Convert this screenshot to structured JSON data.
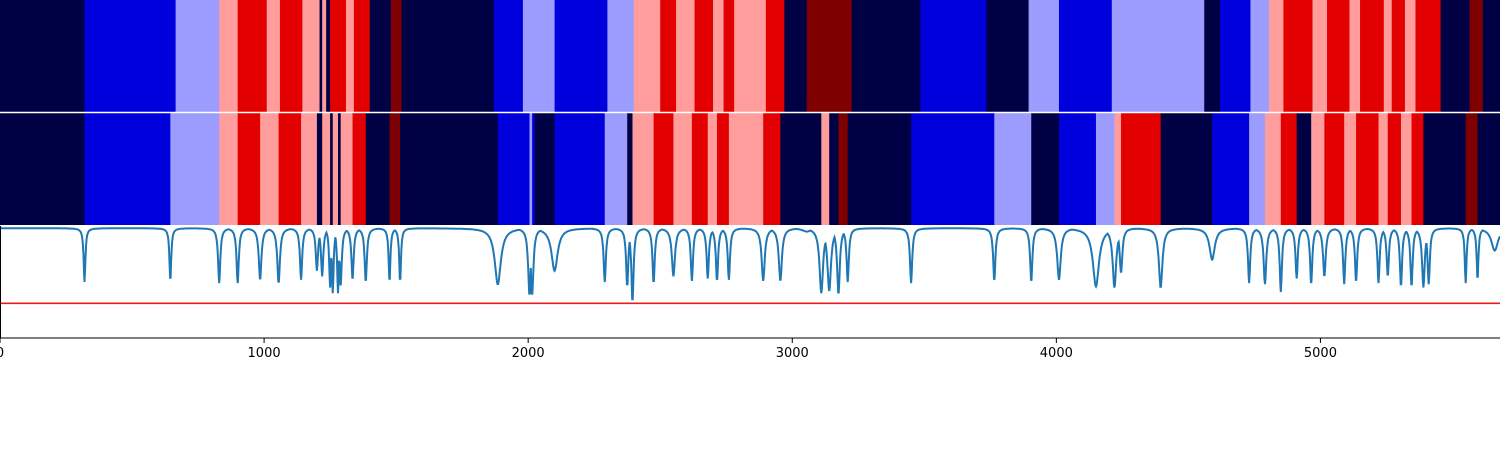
{
  "chart_data": {
    "type": "heatmap",
    "xlim": [
      0,
      5680
    ],
    "x_ticks": [
      0,
      1000,
      2000,
      3000,
      4000,
      5000
    ],
    "colors": {
      "0": "#000045",
      "1": "#0000dc",
      "2": "#9c9cff",
      "3": "#ff9c9c",
      "4": "#e30000",
      "5": "#7f0000",
      "divider": "#ffffff",
      "line": "#1f77b4",
      "threshold": "#e8191a"
    },
    "row1": [
      [
        0,
        0
      ],
      [
        320,
        1
      ],
      [
        665,
        2
      ],
      [
        830,
        3
      ],
      [
        900,
        4
      ],
      [
        1010,
        3
      ],
      [
        1060,
        4
      ],
      [
        1145,
        3
      ],
      [
        1210,
        0
      ],
      [
        1220,
        3
      ],
      [
        1235,
        0
      ],
      [
        1250,
        4
      ],
      [
        1310,
        3
      ],
      [
        1340,
        4
      ],
      [
        1400,
        0
      ],
      [
        1480,
        5
      ],
      [
        1520,
        0
      ],
      [
        1870,
        1
      ],
      [
        1980,
        2
      ],
      [
        2100,
        1
      ],
      [
        2300,
        2
      ],
      [
        2400,
        3
      ],
      [
        2500,
        4
      ],
      [
        2560,
        3
      ],
      [
        2630,
        4
      ],
      [
        2700,
        3
      ],
      [
        2740,
        4
      ],
      [
        2780,
        3
      ],
      [
        2900,
        4
      ],
      [
        2970,
        0
      ],
      [
        3055,
        5
      ],
      [
        3225,
        0
      ],
      [
        3485,
        1
      ],
      [
        3735,
        0
      ],
      [
        3895,
        2
      ],
      [
        4010,
        1
      ],
      [
        4210,
        2
      ],
      [
        4560,
        0
      ],
      [
        4620,
        1
      ],
      [
        4735,
        2
      ],
      [
        4805,
        3
      ],
      [
        4860,
        4
      ],
      [
        4970,
        3
      ],
      [
        5025,
        4
      ],
      [
        5110,
        3
      ],
      [
        5150,
        4
      ],
      [
        5240,
        3
      ],
      [
        5270,
        4
      ],
      [
        5320,
        3
      ],
      [
        5360,
        4
      ],
      [
        5455,
        0
      ],
      [
        5565,
        5
      ],
      [
        5615,
        0
      ]
    ],
    "row2": [
      [
        0,
        0
      ],
      [
        320,
        1
      ],
      [
        645,
        2
      ],
      [
        830,
        3
      ],
      [
        900,
        4
      ],
      [
        985,
        3
      ],
      [
        1055,
        4
      ],
      [
        1140,
        3
      ],
      [
        1200,
        0
      ],
      [
        1220,
        3
      ],
      [
        1250,
        0
      ],
      [
        1260,
        3
      ],
      [
        1280,
        0
      ],
      [
        1290,
        3
      ],
      [
        1335,
        4
      ],
      [
        1385,
        0
      ],
      [
        1475,
        5
      ],
      [
        1515,
        0
      ],
      [
        1885,
        1
      ],
      [
        2005,
        2
      ],
      [
        2015,
        1
      ],
      [
        2025,
        0
      ],
      [
        2100,
        1
      ],
      [
        2290,
        2
      ],
      [
        2375,
        0
      ],
      [
        2395,
        3
      ],
      [
        2475,
        4
      ],
      [
        2550,
        3
      ],
      [
        2620,
        4
      ],
      [
        2680,
        3
      ],
      [
        2715,
        4
      ],
      [
        2760,
        3
      ],
      [
        2890,
        4
      ],
      [
        2955,
        0
      ],
      [
        3110,
        3
      ],
      [
        3140,
        0
      ],
      [
        3175,
        5
      ],
      [
        3210,
        0
      ],
      [
        3450,
        1
      ],
      [
        3765,
        2
      ],
      [
        3905,
        0
      ],
      [
        4010,
        1
      ],
      [
        4150,
        2
      ],
      [
        4220,
        3
      ],
      [
        4245,
        4
      ],
      [
        4395,
        0
      ],
      [
        4590,
        1
      ],
      [
        4730,
        2
      ],
      [
        4790,
        3
      ],
      [
        4850,
        4
      ],
      [
        4910,
        0
      ],
      [
        4965,
        3
      ],
      [
        5015,
        4
      ],
      [
        5090,
        3
      ],
      [
        5135,
        4
      ],
      [
        5220,
        3
      ],
      [
        5255,
        4
      ],
      [
        5305,
        3
      ],
      [
        5345,
        4
      ],
      [
        5390,
        0
      ],
      [
        5550,
        5
      ],
      [
        5595,
        0
      ]
    ],
    "line": {
      "ylim": [
        0,
        1.0
      ],
      "baseline": 0.98,
      "threshold": 0.31,
      "dips": [
        [
          320,
          0.5,
          4
        ],
        [
          645,
          0.51,
          4
        ],
        [
          830,
          0.49,
          5
        ],
        [
          900,
          0.49,
          5
        ],
        [
          985,
          0.52,
          6
        ],
        [
          1055,
          0.49,
          6
        ],
        [
          1140,
          0.52,
          5
        ],
        [
          1200,
          0.6,
          5
        ],
        [
          1220,
          0.55,
          5
        ],
        [
          1250,
          0.45,
          4
        ],
        [
          1260,
          0.4,
          4
        ],
        [
          1280,
          0.4,
          4
        ],
        [
          1290,
          0.47,
          5
        ],
        [
          1335,
          0.52,
          5
        ],
        [
          1385,
          0.5,
          5
        ],
        [
          1475,
          0.5,
          4
        ],
        [
          1515,
          0.5,
          4
        ],
        [
          1885,
          0.48,
          14
        ],
        [
          2005,
          0.38,
          6
        ],
        [
          2015,
          0.38,
          6
        ],
        [
          2100,
          0.6,
          14
        ],
        [
          2290,
          0.5,
          5
        ],
        [
          2375,
          0.46,
          5
        ],
        [
          2395,
          0.32,
          5
        ],
        [
          2475,
          0.49,
          5
        ],
        [
          2550,
          0.55,
          7
        ],
        [
          2620,
          0.51,
          5
        ],
        [
          2680,
          0.53,
          5
        ],
        [
          2715,
          0.51,
          5
        ],
        [
          2760,
          0.52,
          5
        ],
        [
          2890,
          0.51,
          7
        ],
        [
          2955,
          0.51,
          7
        ],
        [
          3055,
          0.95,
          20
        ],
        [
          3110,
          0.4,
          8
        ],
        [
          3140,
          0.42,
          8
        ],
        [
          3175,
          0.39,
          6
        ],
        [
          3210,
          0.5,
          5
        ],
        [
          3450,
          0.49,
          5
        ],
        [
          3765,
          0.51,
          5
        ],
        [
          3905,
          0.5,
          5
        ],
        [
          4010,
          0.52,
          8
        ],
        [
          4150,
          0.46,
          14
        ],
        [
          4220,
          0.45,
          8
        ],
        [
          4245,
          0.58,
          6
        ],
        [
          4395,
          0.45,
          8
        ],
        [
          4590,
          0.7,
          12
        ],
        [
          4730,
          0.49,
          5
        ],
        [
          4790,
          0.48,
          6
        ],
        [
          4850,
          0.41,
          5
        ],
        [
          4910,
          0.53,
          5
        ],
        [
          4965,
          0.48,
          5
        ],
        [
          5015,
          0.55,
          6
        ],
        [
          5090,
          0.48,
          5
        ],
        [
          5135,
          0.5,
          5
        ],
        [
          5220,
          0.49,
          5
        ],
        [
          5255,
          0.55,
          5
        ],
        [
          5305,
          0.46,
          5
        ],
        [
          5345,
          0.46,
          5
        ],
        [
          5390,
          0.45,
          6
        ],
        [
          5410,
          0.48,
          5
        ],
        [
          5550,
          0.49,
          4
        ],
        [
          5595,
          0.52,
          4
        ],
        [
          5660,
          0.78,
          15
        ]
      ]
    }
  }
}
